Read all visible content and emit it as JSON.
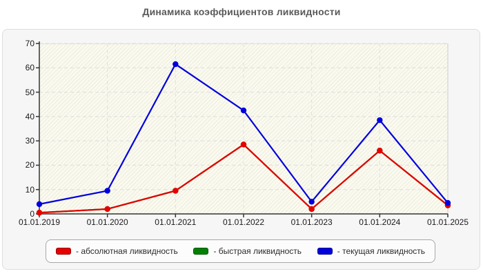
{
  "title": "Динамика коэффициентов ликвидности",
  "chart_data": {
    "type": "line",
    "title": "Динамика коэффициентов ликвидности",
    "categories": [
      "01.01.2019",
      "01.01.2020",
      "01.01.2021",
      "01.01.2022",
      "01.01.2023",
      "01.01.2024",
      "01.01.2025"
    ],
    "series": [
      {
        "name": "быстрая ликвидность",
        "color": "#008000",
        "values": [
          0.5,
          2,
          9.5,
          28.5,
          2,
          26,
          3.5
        ]
      },
      {
        "name": "абсолютная ликвидность",
        "color": "#e60000",
        "values": [
          0.5,
          2,
          9.5,
          28.5,
          2,
          26,
          3.5
        ]
      },
      {
        "name": "текущая ликвидность",
        "color": "#0000dd",
        "values": [
          4,
          9.5,
          61.5,
          42.5,
          5,
          38.5,
          4.5
        ]
      }
    ],
    "ylim": [
      0,
      70
    ],
    "yticks": [
      "0",
      "10",
      "20",
      "30",
      "40",
      "50",
      "60",
      "70"
    ],
    "grid": true,
    "legend_position": "bottom"
  },
  "legend": {
    "items": [
      {
        "label": "- абсолютная ликвидность",
        "color": "#e60000"
      },
      {
        "label": "- быстрая ликвидность",
        "color": "#008000"
      },
      {
        "label": "- текущая ликвидность",
        "color": "#0000dd"
      }
    ]
  }
}
